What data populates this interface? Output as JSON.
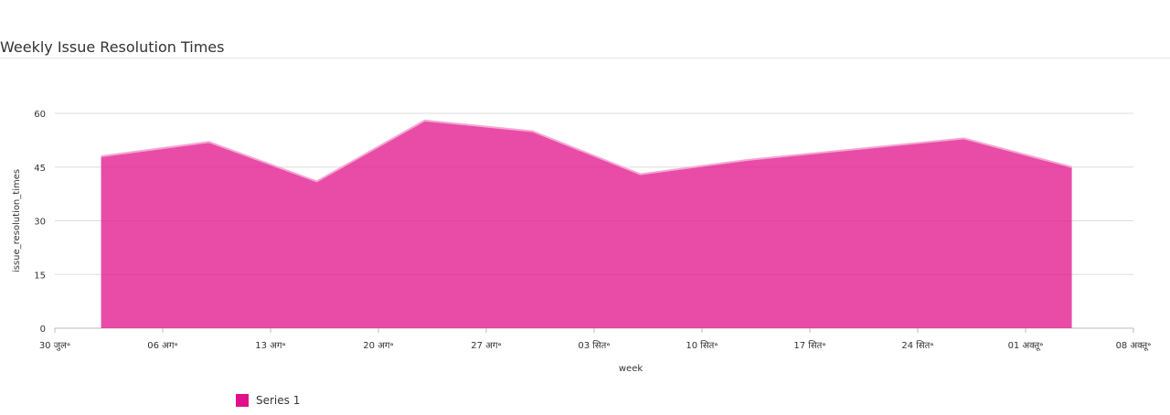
{
  "chart_data": {
    "type": "area",
    "title": "Weekly Issue Resolution Times",
    "xlabel": "week",
    "ylabel": "issue_resolution_times",
    "ylim": [
      0,
      60
    ],
    "yticks": [
      0,
      15,
      30,
      45,
      60
    ],
    "xticks": [
      "30 जुल॰",
      "06 अग॰",
      "13 अग॰",
      "20 अग॰",
      "27 अग॰",
      "03 सित॰",
      "10 सित॰",
      "17 सित॰",
      "24 सित॰",
      "01 अक्तू॰",
      "08 अक्तू॰"
    ],
    "xlim": [
      "2018-07-30",
      "2018-10-08"
    ],
    "x": [
      "2018-08-02",
      "2018-08-09",
      "2018-08-16",
      "2018-08-23",
      "2018-08-30",
      "2018-09-06",
      "2018-09-13",
      "2018-09-20",
      "2018-09-27",
      "2018-10-04"
    ],
    "series": [
      {
        "name": "Series 1",
        "values": [
          48,
          52,
          41,
          58,
          55,
          43,
          47,
          50,
          53,
          45
        ]
      }
    ],
    "grid": true,
    "legend_position": "bottom-left",
    "colors": {
      "fill": "#e0108a",
      "line": "#f4a7d3"
    }
  }
}
